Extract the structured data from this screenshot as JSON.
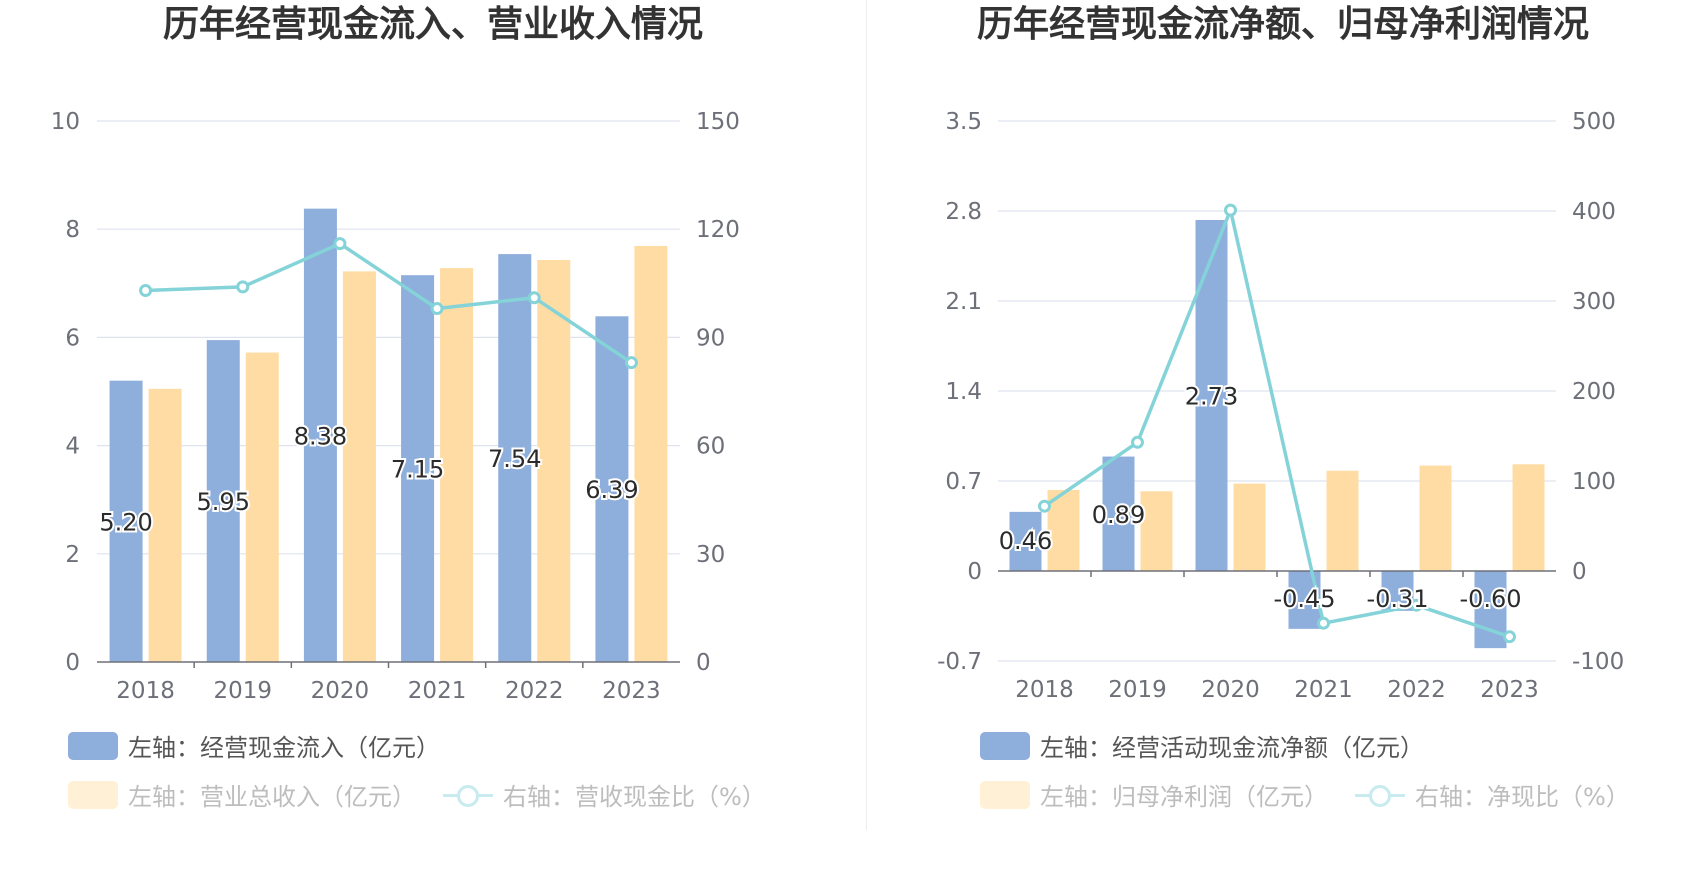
{
  "colors": {
    "left_bar": "#8eaedc",
    "right_bar": "#ffdca3",
    "line": "#84d3d8",
    "legend_line_dim": "#c7ebee",
    "legend_bar_dim": "#fff0d6",
    "grid": "#dfe3ee",
    "axis_text": "#6e7079"
  },
  "charts": [
    {
      "title": "历年经营现金流入、营业收入情况",
      "legend": [
        {
          "label": "左轴：经营现金流入（亿元）",
          "kind": "bar",
          "active": true
        },
        {
          "label": "左轴：营业总收入（亿元）",
          "kind": "bar",
          "active": false
        },
        {
          "label": "右轴：营收现金比（%）",
          "kind": "line",
          "active": false
        }
      ]
    },
    {
      "title": "历年经营现金流净额、归母净利润情况",
      "legend": [
        {
          "label": "左轴：经营活动现金流净额（亿元）",
          "kind": "bar",
          "active": true
        },
        {
          "label": "左轴：归母净利润（亿元）",
          "kind": "bar",
          "active": false
        },
        {
          "label": "右轴：净现比（%）",
          "kind": "line",
          "active": false
        }
      ]
    }
  ],
  "chart_data": [
    {
      "type": "bar",
      "title": "历年经营现金流入、营业收入情况",
      "categories": [
        "2018",
        "2019",
        "2020",
        "2021",
        "2022",
        "2023"
      ],
      "left_axis": {
        "min": 0,
        "max": 10,
        "ticks": [
          "0",
          "2",
          "4",
          "6",
          "8",
          "10"
        ]
      },
      "right_axis": {
        "min": 0,
        "max": 150,
        "ticks": [
          "0",
          "30",
          "60",
          "90",
          "120",
          "150"
        ]
      },
      "grid": true,
      "legend_position": "bottom",
      "series": [
        {
          "name": "左轴：经营现金流入（亿元）",
          "type": "bar",
          "axis": "left",
          "values": [
            5.2,
            5.95,
            8.38,
            7.15,
            7.54,
            6.39
          ],
          "labels": [
            "5.20",
            "5.95",
            "8.38",
            "7.15",
            "7.54",
            "6.39"
          ]
        },
        {
          "name": "左轴：营业总收入（亿元）",
          "type": "bar",
          "axis": "left",
          "values": [
            5.05,
            5.72,
            7.22,
            7.28,
            7.43,
            7.69
          ]
        },
        {
          "name": "右轴：营收现金比（%）",
          "type": "line",
          "axis": "right",
          "values": [
            103,
            104,
            116,
            98,
            101,
            83
          ]
        }
      ]
    },
    {
      "type": "bar",
      "title": "历年经营现金流净额、归母净利润情况",
      "categories": [
        "2018",
        "2019",
        "2020",
        "2021",
        "2022",
        "2023"
      ],
      "left_axis": {
        "min": -0.7,
        "max": 3.5,
        "ticks": [
          "-0.7",
          "0",
          "0.7",
          "1.4",
          "2.1",
          "2.8",
          "3.5"
        ]
      },
      "right_axis": {
        "min": -100,
        "max": 500,
        "ticks": [
          "-100",
          "0",
          "100",
          "200",
          "300",
          "400",
          "500"
        ]
      },
      "grid": true,
      "legend_position": "bottom",
      "series": [
        {
          "name": "左轴：经营活动现金流净额（亿元）",
          "type": "bar",
          "axis": "left",
          "values": [
            0.46,
            0.89,
            2.73,
            -0.45,
            -0.31,
            -0.6
          ],
          "labels": [
            "0.46",
            "0.89",
            "2.73",
            "-0.45",
            "-0.31",
            "-0.60"
          ]
        },
        {
          "name": "左轴：归母净利润（亿元）",
          "type": "bar",
          "axis": "left",
          "values": [
            0.63,
            0.62,
            0.68,
            0.78,
            0.82,
            0.83
          ]
        },
        {
          "name": "右轴：净现比（%）",
          "type": "line",
          "axis": "right",
          "values": [
            72,
            143,
            401,
            -58,
            -38,
            -73
          ]
        }
      ]
    }
  ]
}
